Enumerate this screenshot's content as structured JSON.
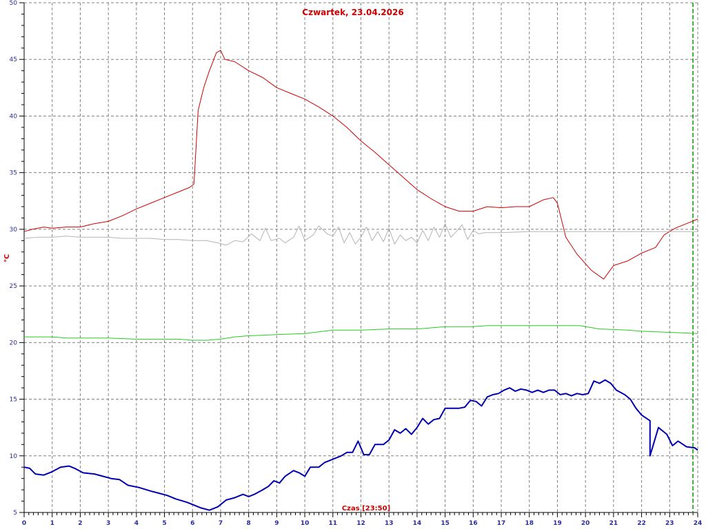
{
  "chart_data": {
    "type": "line",
    "title": "Czwartek, 23.04.2026",
    "xlabel": "Czas [23:50]",
    "ylabel": "°C",
    "xlim": [
      0,
      24
    ],
    "ylim": [
      5,
      50
    ],
    "x_ticks": [
      0,
      1,
      2,
      3,
      4,
      5,
      6,
      7,
      8,
      9,
      10,
      11,
      12,
      13,
      14,
      15,
      16,
      17,
      18,
      19,
      20,
      21,
      22,
      23,
      24
    ],
    "y_ticks": [
      5,
      10,
      15,
      20,
      25,
      30,
      35,
      40,
      45,
      50
    ],
    "grid": true,
    "current_time_marker": 23.83,
    "colors": {
      "series_1": "#cc0000",
      "series_2": "#b4b4b4",
      "series_3": "#22cc22",
      "series_4": "#0000b0",
      "marker": "#009900",
      "grid": "#808080",
      "axis": "#000000"
    },
    "series": [
      {
        "color": "#cc0000",
        "line_width": 1,
        "points": [
          [
            0,
            29.8
          ],
          [
            0.3,
            30.0
          ],
          [
            0.7,
            30.2
          ],
          [
            1.0,
            30.1
          ],
          [
            1.5,
            30.2
          ],
          [
            2.0,
            30.2
          ],
          [
            2.5,
            30.5
          ],
          [
            3.0,
            30.7
          ],
          [
            3.5,
            31.2
          ],
          [
            4.0,
            31.8
          ],
          [
            4.5,
            32.3
          ],
          [
            5.0,
            32.8
          ],
          [
            5.5,
            33.3
          ],
          [
            5.9,
            33.7
          ],
          [
            6.05,
            34.0
          ],
          [
            6.2,
            40.5
          ],
          [
            6.4,
            42.5
          ],
          [
            6.6,
            44.0
          ],
          [
            6.85,
            45.6
          ],
          [
            7.0,
            45.8
          ],
          [
            7.15,
            45.0
          ],
          [
            7.5,
            44.8
          ],
          [
            8.0,
            44.0
          ],
          [
            8.5,
            43.4
          ],
          [
            9.0,
            42.5
          ],
          [
            9.5,
            42.0
          ],
          [
            10.0,
            41.5
          ],
          [
            10.5,
            40.8
          ],
          [
            11.0,
            40.0
          ],
          [
            11.5,
            39.0
          ],
          [
            12.0,
            37.8
          ],
          [
            12.5,
            36.8
          ],
          [
            13.0,
            35.7
          ],
          [
            13.5,
            34.6
          ],
          [
            14.0,
            33.5
          ],
          [
            14.5,
            32.7
          ],
          [
            15.0,
            32.0
          ],
          [
            15.5,
            31.6
          ],
          [
            16.0,
            31.6
          ],
          [
            16.5,
            32.0
          ],
          [
            17.0,
            31.9
          ],
          [
            17.5,
            32.0
          ],
          [
            18.0,
            32.0
          ],
          [
            18.5,
            32.6
          ],
          [
            18.85,
            32.8
          ],
          [
            19.0,
            32.3
          ],
          [
            19.3,
            29.3
          ],
          [
            19.7,
            27.8
          ],
          [
            20.2,
            26.4
          ],
          [
            20.65,
            25.6
          ],
          [
            21.0,
            26.8
          ],
          [
            21.5,
            27.2
          ],
          [
            22.0,
            27.9
          ],
          [
            22.5,
            28.4
          ],
          [
            22.8,
            29.5
          ],
          [
            23.2,
            30.1
          ],
          [
            23.6,
            30.5
          ],
          [
            24.0,
            30.9
          ]
        ]
      },
      {
        "color": "#b4b4b4",
        "line_width": 1,
        "points": [
          [
            0,
            29.2
          ],
          [
            0.5,
            29.3
          ],
          [
            1.0,
            29.3
          ],
          [
            1.5,
            29.4
          ],
          [
            2.0,
            29.3
          ],
          [
            2.5,
            29.3
          ],
          [
            3.0,
            29.3
          ],
          [
            3.5,
            29.2
          ],
          [
            4.0,
            29.2
          ],
          [
            4.5,
            29.2
          ],
          [
            5.0,
            29.1
          ],
          [
            5.5,
            29.1
          ],
          [
            6.0,
            29.0
          ],
          [
            6.5,
            29.0
          ],
          [
            6.9,
            28.8
          ],
          [
            7.2,
            28.6
          ],
          [
            7.5,
            29.0
          ],
          [
            7.8,
            28.9
          ],
          [
            8.1,
            29.6
          ],
          [
            8.4,
            29.0
          ],
          [
            8.6,
            30.1
          ],
          [
            8.8,
            29.0
          ],
          [
            9.1,
            29.2
          ],
          [
            9.3,
            28.8
          ],
          [
            9.6,
            29.3
          ],
          [
            9.8,
            30.3
          ],
          [
            10.0,
            29.0
          ],
          [
            10.3,
            29.5
          ],
          [
            10.5,
            30.3
          ],
          [
            10.8,
            29.6
          ],
          [
            11.0,
            29.4
          ],
          [
            11.2,
            30.2
          ],
          [
            11.4,
            28.8
          ],
          [
            11.6,
            29.7
          ],
          [
            11.8,
            28.7
          ],
          [
            12.0,
            29.3
          ],
          [
            12.2,
            30.2
          ],
          [
            12.4,
            29.0
          ],
          [
            12.6,
            29.8
          ],
          [
            12.8,
            28.9
          ],
          [
            13.0,
            30.1
          ],
          [
            13.2,
            28.7
          ],
          [
            13.4,
            29.5
          ],
          [
            13.6,
            29.0
          ],
          [
            13.8,
            29.3
          ],
          [
            14.0,
            28.8
          ],
          [
            14.2,
            29.9
          ],
          [
            14.4,
            29.0
          ],
          [
            14.6,
            30.2
          ],
          [
            14.8,
            29.3
          ],
          [
            15.0,
            30.5
          ],
          [
            15.2,
            29.3
          ],
          [
            15.4,
            29.8
          ],
          [
            15.6,
            30.4
          ],
          [
            15.8,
            29.1
          ],
          [
            16.0,
            29.9
          ],
          [
            16.2,
            29.6
          ],
          [
            16.4,
            29.7
          ],
          [
            17.0,
            29.7
          ],
          [
            18.0,
            29.8
          ],
          [
            19.0,
            29.8
          ],
          [
            20.0,
            29.8
          ],
          [
            21.0,
            29.8
          ],
          [
            22.0,
            29.8
          ],
          [
            23.0,
            29.8
          ],
          [
            24.0,
            29.8
          ]
        ]
      },
      {
        "color": "#22cc22",
        "line_width": 1,
        "points": [
          [
            0,
            20.5
          ],
          [
            1.0,
            20.5
          ],
          [
            1.5,
            20.4
          ],
          [
            3.0,
            20.4
          ],
          [
            4.0,
            20.3
          ],
          [
            5.0,
            20.3
          ],
          [
            5.5,
            20.3
          ],
          [
            6.0,
            20.2
          ],
          [
            6.5,
            20.2
          ],
          [
            7.0,
            20.3
          ],
          [
            7.5,
            20.5
          ],
          [
            8.0,
            20.6
          ],
          [
            9.0,
            20.7
          ],
          [
            10.0,
            20.8
          ],
          [
            11.0,
            21.1
          ],
          [
            12.0,
            21.1
          ],
          [
            13.0,
            21.2
          ],
          [
            14.0,
            21.2
          ],
          [
            15.0,
            21.4
          ],
          [
            16.0,
            21.4
          ],
          [
            16.5,
            21.5
          ],
          [
            17.0,
            21.5
          ],
          [
            18.0,
            21.5
          ],
          [
            19.0,
            21.5
          ],
          [
            19.8,
            21.5
          ],
          [
            20.5,
            21.2
          ],
          [
            21.5,
            21.1
          ],
          [
            22.0,
            21.0
          ],
          [
            23.0,
            20.9
          ],
          [
            24.0,
            20.8
          ]
        ]
      },
      {
        "color": "#0000b0",
        "line_width": 2,
        "points": [
          [
            0,
            9.0
          ],
          [
            0.2,
            8.9
          ],
          [
            0.4,
            8.4
          ],
          [
            0.7,
            8.3
          ],
          [
            1.0,
            8.6
          ],
          [
            1.3,
            9.0
          ],
          [
            1.6,
            9.1
          ],
          [
            1.8,
            8.9
          ],
          [
            2.1,
            8.5
          ],
          [
            2.5,
            8.4
          ],
          [
            2.8,
            8.2
          ],
          [
            3.1,
            8.0
          ],
          [
            3.4,
            7.9
          ],
          [
            3.7,
            7.4
          ],
          [
            4.1,
            7.2
          ],
          [
            4.5,
            6.9
          ],
          [
            4.8,
            6.7
          ],
          [
            5.1,
            6.5
          ],
          [
            5.4,
            6.2
          ],
          [
            5.8,
            5.9
          ],
          [
            6.1,
            5.6
          ],
          [
            6.3,
            5.4
          ],
          [
            6.6,
            5.2
          ],
          [
            6.9,
            5.5
          ],
          [
            7.2,
            6.1
          ],
          [
            7.5,
            6.3
          ],
          [
            7.8,
            6.6
          ],
          [
            8.0,
            6.4
          ],
          [
            8.2,
            6.6
          ],
          [
            8.5,
            7.0
          ],
          [
            8.7,
            7.3
          ],
          [
            8.9,
            7.8
          ],
          [
            9.1,
            7.6
          ],
          [
            9.3,
            8.2
          ],
          [
            9.6,
            8.7
          ],
          [
            9.8,
            8.5
          ],
          [
            10.0,
            8.2
          ],
          [
            10.2,
            9.0
          ],
          [
            10.5,
            9.0
          ],
          [
            10.7,
            9.4
          ],
          [
            11.0,
            9.7
          ],
          [
            11.3,
            10.0
          ],
          [
            11.5,
            10.3
          ],
          [
            11.7,
            10.3
          ],
          [
            11.9,
            11.3
          ],
          [
            12.1,
            10.1
          ],
          [
            12.3,
            10.1
          ],
          [
            12.5,
            11.0
          ],
          [
            12.8,
            11.0
          ],
          [
            13.0,
            11.4
          ],
          [
            13.2,
            12.3
          ],
          [
            13.4,
            12.0
          ],
          [
            13.6,
            12.4
          ],
          [
            13.8,
            11.9
          ],
          [
            14.0,
            12.5
          ],
          [
            14.2,
            13.3
          ],
          [
            14.4,
            12.8
          ],
          [
            14.6,
            13.2
          ],
          [
            14.8,
            13.3
          ],
          [
            15.0,
            14.2
          ],
          [
            15.3,
            14.2
          ],
          [
            15.5,
            14.2
          ],
          [
            15.7,
            14.3
          ],
          [
            15.9,
            14.9
          ],
          [
            16.1,
            14.8
          ],
          [
            16.3,
            14.4
          ],
          [
            16.5,
            15.2
          ],
          [
            16.7,
            15.4
          ],
          [
            16.9,
            15.5
          ],
          [
            17.1,
            15.8
          ],
          [
            17.3,
            16.0
          ],
          [
            17.5,
            15.7
          ],
          [
            17.7,
            15.9
          ],
          [
            17.9,
            15.8
          ],
          [
            18.1,
            15.6
          ],
          [
            18.3,
            15.8
          ],
          [
            18.5,
            15.6
          ],
          [
            18.7,
            15.8
          ],
          [
            18.9,
            15.8
          ],
          [
            19.1,
            15.4
          ],
          [
            19.3,
            15.5
          ],
          [
            19.5,
            15.3
          ],
          [
            19.7,
            15.5
          ],
          [
            19.9,
            15.4
          ],
          [
            20.1,
            15.5
          ],
          [
            20.3,
            16.6
          ],
          [
            20.5,
            16.4
          ],
          [
            20.7,
            16.7
          ],
          [
            20.9,
            16.4
          ],
          [
            21.1,
            15.8
          ],
          [
            21.4,
            15.4
          ],
          [
            21.6,
            15.0
          ],
          [
            21.8,
            14.2
          ],
          [
            22.0,
            13.6
          ],
          [
            22.3,
            13.1
          ],
          [
            22.6,
            12.5
          ],
          [
            22.9,
            11.9
          ],
          [
            23.1,
            10.9
          ],
          [
            23.3,
            11.3
          ],
          [
            23.6,
            10.8
          ],
          [
            23.9,
            10.7
          ],
          [
            24.0,
            10.5
          ],
          [
            22.3,
            10.0
          ]
        ]
      }
    ]
  }
}
